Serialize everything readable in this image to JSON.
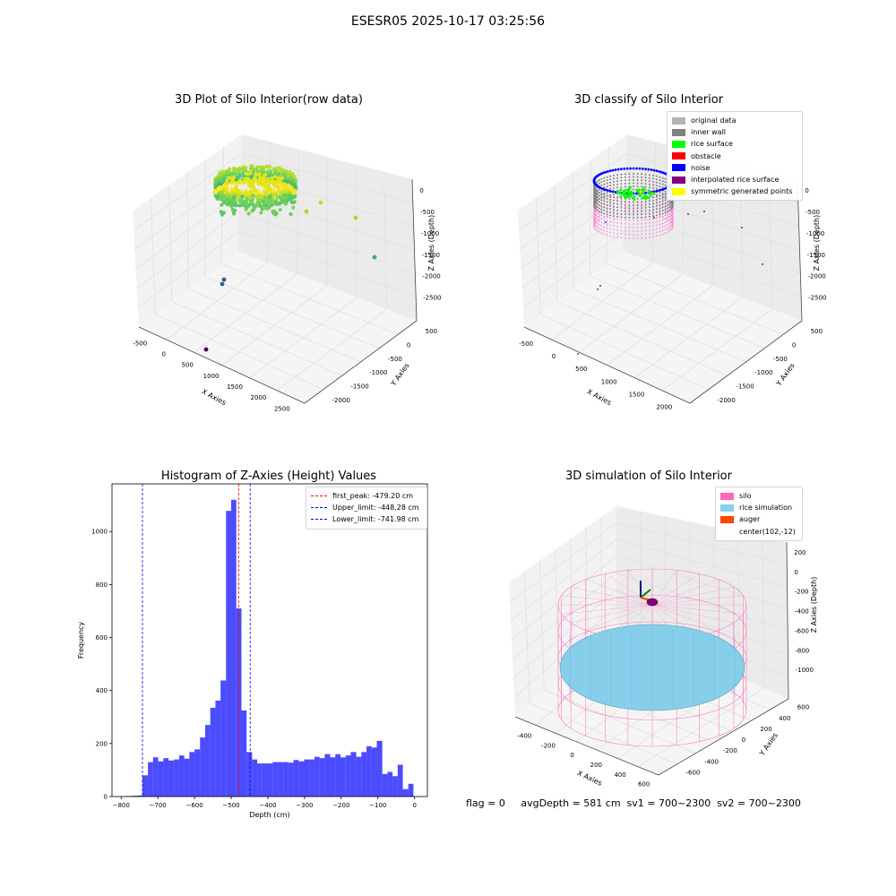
{
  "suptitle": "ESESR05 2025-10-17 03:25:56",
  "footer": "flag = 0     avgDepth = 581 cm  sv1 = 700~2300  sv2 = 700~2300",
  "chart_data": [
    {
      "type": "scatter",
      "title": "3D Plot of Silo Interior(row data)",
      "xlabel": "X Axies",
      "ylabel": "Y Axies",
      "zlabel": "Z Axies (Depth)",
      "xticks": [
        "-500",
        "0",
        "500",
        "1000",
        "1500",
        "2000",
        "2500"
      ],
      "yticks": [
        "500",
        "0",
        "-500",
        "-1000",
        "-1500",
        "-2000"
      ],
      "zticks": [
        "0",
        "-500",
        "-1000",
        "-1500",
        "-2000",
        "-2500"
      ],
      "xlim": [
        -700,
        2600
      ],
      "ylim": [
        -2200,
        700
      ],
      "zlim": [
        -2800,
        200
      ],
      "colormap": "viridis"
    },
    {
      "type": "scatter",
      "title": "3D classify of Silo Interior",
      "xlabel": "X Axies",
      "ylabel": "Y Axies",
      "zlabel": "Z Axies (Depth)",
      "xticks": [
        "-500",
        "0",
        "500",
        "1000",
        "1500",
        "2000"
      ],
      "yticks": [
        "500",
        "0",
        "-500",
        "-1000",
        "-1500",
        "-2000"
      ],
      "zticks": [
        "0",
        "-500",
        "-1000",
        "-1500",
        "-2000",
        "-2500"
      ],
      "legend": [
        {
          "label": "original data",
          "color": "#b3b3b3"
        },
        {
          "label": "inner wall",
          "color": "#808080"
        },
        {
          "label": "rice surface",
          "color": "#00ff00"
        },
        {
          "label": "obstacle",
          "color": "#ff0000"
        },
        {
          "label": "noise",
          "color": "#0000ff"
        },
        {
          "label": "interpolated rice surface",
          "color": "#800080"
        },
        {
          "label": "symmetric generated points",
          "color": "#ffff00"
        }
      ]
    },
    {
      "type": "bar",
      "title": "Histogram of Z-Axies (Height) Values",
      "xlabel": "Depth (cm)",
      "ylabel": "Frequency",
      "xlim": [
        -825,
        35
      ],
      "ylim": [
        0,
        1180
      ],
      "xticks": [
        -800,
        -700,
        -600,
        -500,
        -400,
        -300,
        -200,
        -100,
        0
      ],
      "yticks": [
        0,
        200,
        400,
        600,
        800,
        1000
      ],
      "bar_color": "#0000ff",
      "bins": [
        [
          -790,
          -770,
          2
        ],
        [
          -770,
          -756,
          3
        ],
        [
          -756,
          -742,
          4
        ],
        [
          -742,
          -727,
          80
        ],
        [
          -727,
          -713,
          130
        ],
        [
          -713,
          -699,
          148
        ],
        [
          -699,
          -685,
          133
        ],
        [
          -685,
          -671,
          145
        ],
        [
          -671,
          -656,
          136
        ],
        [
          -656,
          -642,
          140
        ],
        [
          -642,
          -628,
          155
        ],
        [
          -628,
          -614,
          143
        ],
        [
          -614,
          -600,
          168
        ],
        [
          -600,
          -585,
          178
        ],
        [
          -585,
          -571,
          223
        ],
        [
          -571,
          -557,
          270
        ],
        [
          -557,
          -543,
          335
        ],
        [
          -543,
          -529,
          362
        ],
        [
          -529,
          -514,
          438
        ],
        [
          -514,
          -500,
          1078
        ],
        [
          -500,
          -486,
          1120
        ],
        [
          -486,
          -472,
          710
        ],
        [
          -472,
          -458,
          325
        ],
        [
          -458,
          -443,
          168
        ],
        [
          -443,
          -429,
          140
        ],
        [
          -429,
          -415,
          125
        ],
        [
          -415,
          -401,
          125
        ],
        [
          -401,
          -387,
          125
        ],
        [
          -387,
          -372,
          130
        ],
        [
          -372,
          -358,
          130
        ],
        [
          -358,
          -344,
          130
        ],
        [
          -344,
          -330,
          128
        ],
        [
          -330,
          -316,
          138
        ],
        [
          -316,
          -301,
          133
        ],
        [
          -301,
          -287,
          140
        ],
        [
          -287,
          -273,
          140
        ],
        [
          -273,
          -259,
          150
        ],
        [
          -259,
          -245,
          145
        ],
        [
          -245,
          -230,
          160
        ],
        [
          -230,
          -216,
          148
        ],
        [
          -216,
          -202,
          160
        ],
        [
          -202,
          -188,
          148
        ],
        [
          -188,
          -174,
          155
        ],
        [
          -174,
          -159,
          168
        ],
        [
          -159,
          -145,
          150
        ],
        [
          -145,
          -131,
          168
        ],
        [
          -131,
          -117,
          190
        ],
        [
          -117,
          -103,
          185
        ],
        [
          -103,
          -88,
          210
        ],
        [
          -88,
          -74,
          85
        ],
        [
          -74,
          -60,
          93
        ],
        [
          -60,
          -46,
          77
        ],
        [
          -46,
          -32,
          120
        ],
        [
          -32,
          -17,
          28
        ],
        [
          -17,
          -3,
          48
        ]
      ],
      "lines": [
        {
          "label": "first_peak: -479.20 cm",
          "x": -479.2,
          "color": "#ff0000"
        },
        {
          "label": "Upper_limit: -448.28 cm",
          "x": -448.28,
          "color": "#0000ff"
        },
        {
          "label": "Lower_limit: -741.98 cm",
          "x": -741.98,
          "color": "#0000ff"
        }
      ]
    },
    {
      "type": "surface",
      "title": "3D simulation of Silo Interior",
      "xlabel": "X Axies",
      "ylabel": "Y Axies",
      "zlabel": "Z Axies (Depth)",
      "xticks": [
        "-400",
        "-200",
        "0",
        "200",
        "400",
        "600"
      ],
      "yticks": [
        "600",
        "400",
        "200",
        "0",
        "-200",
        "-400",
        "-600"
      ],
      "zticks": [
        "200",
        "0",
        "-200",
        "-400",
        "-600",
        "-800",
        "-1000"
      ],
      "center": [
        102,
        -12
      ],
      "avg_depth": 581,
      "legend": [
        {
          "label": "silo",
          "color": "#ff69b4"
        },
        {
          "label": "rice simulation",
          "color": "#87ceeb"
        },
        {
          "label": "auger",
          "color": "#ff4500"
        },
        {
          "label": "center(102,-12)",
          "color": "none"
        }
      ]
    }
  ]
}
